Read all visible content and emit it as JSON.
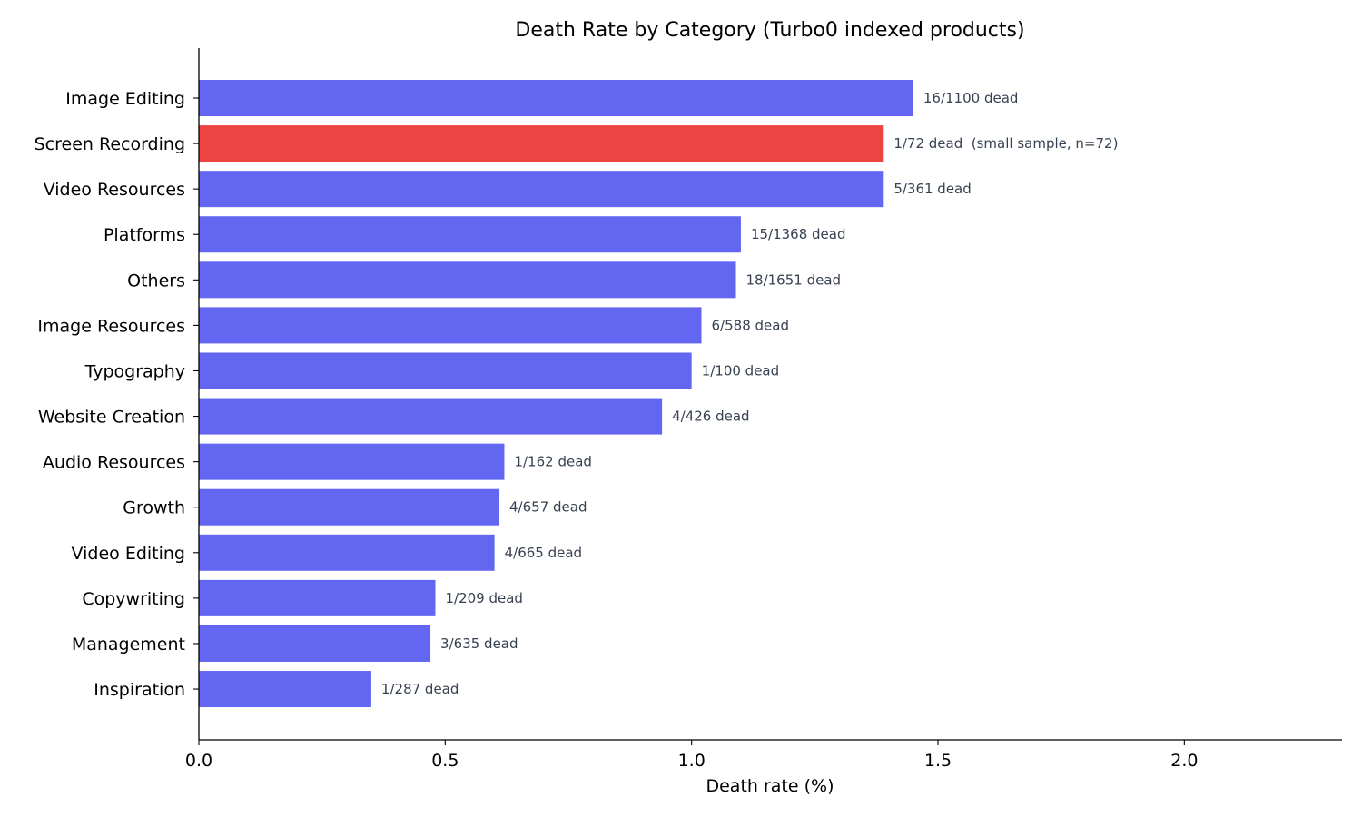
{
  "chart_data": {
    "type": "bar",
    "orientation": "horizontal",
    "title": "Death Rate by Category (Turbo0 indexed products)",
    "xlabel": "Death rate (%)",
    "ylabel": "",
    "xlim": [
      0,
      2.32
    ],
    "xticks": [
      0.0,
      0.5,
      1.0,
      1.5,
      2.0
    ],
    "xtick_labels": [
      "0.0",
      "0.5",
      "1.0",
      "1.5",
      "2.0"
    ],
    "grid": false,
    "legend": "none",
    "colors": {
      "default": "#6366f1",
      "highlight": "#ef4444",
      "label_text": "#374151"
    },
    "categories": [
      "Image Editing",
      "Screen Recording",
      "Video Resources",
      "Platforms",
      "Others",
      "Image Resources",
      "Typography",
      "Website Creation",
      "Audio Resources",
      "Growth",
      "Video Editing",
      "Copywriting",
      "Management",
      "Inspiration"
    ],
    "values": [
      1.45,
      1.39,
      1.39,
      1.1,
      1.09,
      1.02,
      1.0,
      0.94,
      0.62,
      0.61,
      0.6,
      0.48,
      0.47,
      0.35
    ],
    "data_labels": [
      "16/1100 dead",
      "1/72 dead  (small sample, n=72)",
      "5/361 dead",
      "15/1368 dead",
      "18/1651 dead",
      "6/588 dead",
      "1/100 dead",
      "4/426 dead",
      "1/162 dead",
      "4/657 dead",
      "4/665 dead",
      "1/209 dead",
      "3/635 dead",
      "1/287 dead"
    ],
    "highlight": [
      false,
      true,
      false,
      false,
      false,
      false,
      false,
      false,
      false,
      false,
      false,
      false,
      false,
      false
    ]
  }
}
